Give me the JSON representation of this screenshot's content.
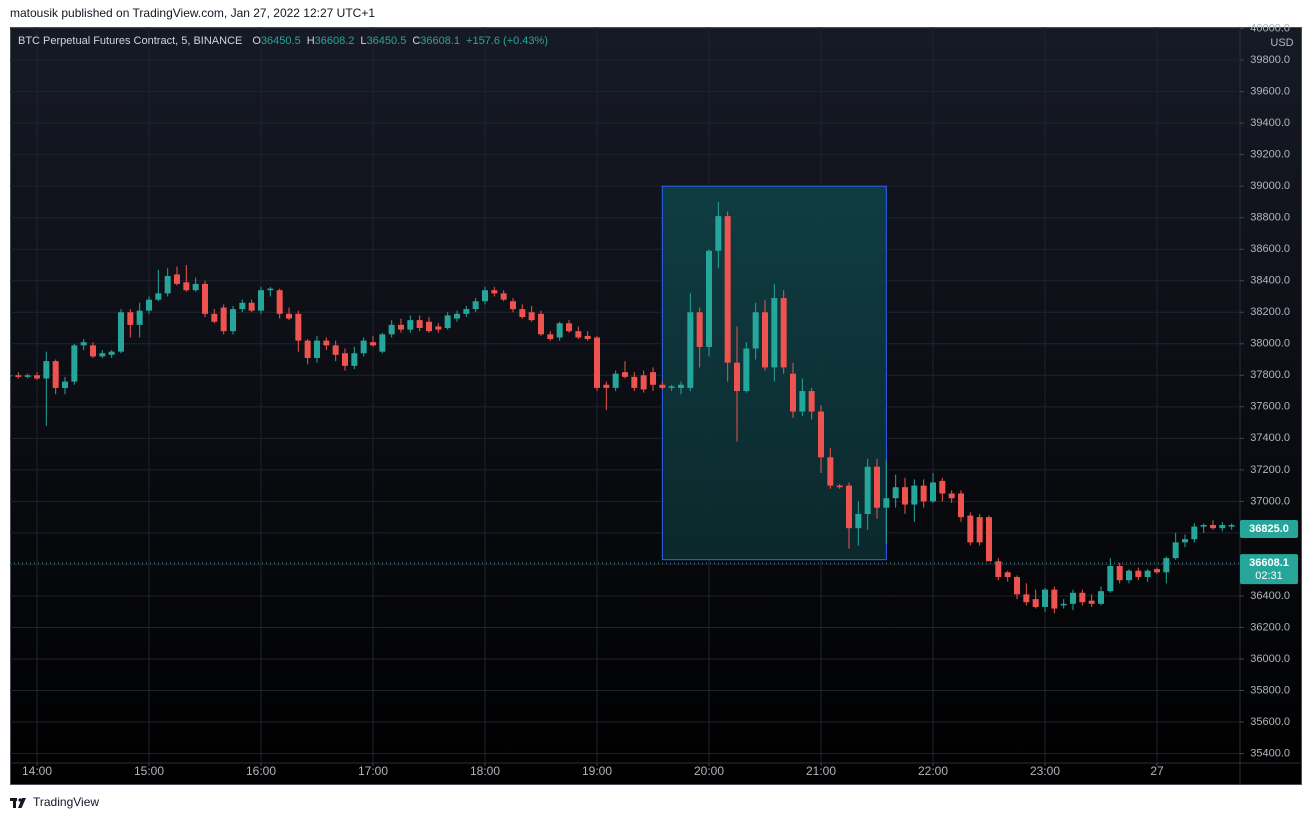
{
  "header": "matousik published on TradingView.com, Jan 27, 2022 12:27 UTC+1",
  "footer": "TradingView",
  "chart_data": {
    "type": "candlestick",
    "legend": {
      "symbol": "BTC Perpetual Futures Contract, 5, BINANCE",
      "o_label": "O",
      "open": 36450.5,
      "h_label": "H",
      "high": 36608.2,
      "l_label": "L",
      "low": 36450.5,
      "c_label": "C",
      "close": 36608.1,
      "change": "+157.6 (+0.43%)"
    },
    "currency": "USD",
    "up_color": "#26a69a",
    "down_color": "#ef5350",
    "grid": true,
    "categories": [
      "13:45",
      "13:50",
      "13:55",
      "14:00",
      "14:05",
      "14:10",
      "14:15",
      "14:20",
      "14:25",
      "14:30",
      "14:35",
      "14:40",
      "14:45",
      "14:50",
      "14:55",
      "15:00",
      "15:05",
      "15:10",
      "15:15",
      "15:20",
      "15:25",
      "15:30",
      "15:35",
      "15:40",
      "15:45",
      "15:50",
      "15:55",
      "16:00",
      "16:05",
      "16:10",
      "16:15",
      "16:20",
      "16:25",
      "16:30",
      "16:35",
      "16:40",
      "16:45",
      "16:50",
      "16:55",
      "17:00",
      "17:05",
      "17:10",
      "17:15",
      "17:20",
      "17:25",
      "17:30",
      "17:35",
      "17:40",
      "17:45",
      "17:50",
      "17:55",
      "18:00",
      "18:05",
      "18:10",
      "18:15",
      "18:20",
      "18:25",
      "18:30",
      "18:35",
      "18:40",
      "18:45",
      "18:50",
      "18:55",
      "19:00",
      "19:05",
      "19:10",
      "19:15",
      "19:20",
      "19:25",
      "19:30",
      "19:35",
      "19:40",
      "19:45",
      "19:50",
      "19:55",
      "20:00",
      "20:05",
      "20:10",
      "20:15",
      "20:20",
      "20:25",
      "20:30",
      "20:35",
      "20:40",
      "20:45",
      "20:50",
      "20:55",
      "21:00",
      "21:05",
      "21:10",
      "21:15",
      "21:20",
      "21:25",
      "21:30",
      "21:35",
      "21:40",
      "21:45",
      "21:50",
      "21:55",
      "22:00",
      "22:05",
      "22:10",
      "22:15",
      "22:20",
      "22:25",
      "22:30",
      "22:35",
      "22:40",
      "22:45",
      "22:50",
      "22:55",
      "23:00",
      "23:05",
      "23:10",
      "23:15",
      "23:20",
      "23:25",
      "23:30",
      "23:35",
      "23:40",
      "23:45",
      "23:50",
      "23:55",
      "00:00",
      "00:05",
      "00:10",
      "00:15",
      "00:20",
      "00:25",
      "00:30",
      "00:35",
      "00:40"
    ],
    "open": [
      37800,
      37800,
      37790,
      37800,
      37780,
      37890,
      37720,
      37760,
      37990,
      37990,
      37920,
      37930,
      37950,
      38200,
      38120,
      38210,
      38280,
      38320,
      38440,
      38390,
      38340,
      38380,
      38190,
      38230,
      38080,
      38220,
      38260,
      38210,
      38340,
      38340,
      38190,
      38190,
      38020,
      37910,
      38020,
      37990,
      37940,
      37860,
      37940,
      38010,
      37950,
      38060,
      38120,
      38090,
      38150,
      38140,
      38110,
      38100,
      38160,
      38190,
      38220,
      38270,
      38340,
      38320,
      38270,
      38220,
      38200,
      38190,
      38060,
      38040,
      38130,
      38080,
      38050,
      38040,
      37740,
      37720,
      37820,
      37790,
      37800,
      37820,
      37740,
      37720,
      37720,
      37720,
      38200,
      37980,
      38590,
      38810,
      37880,
      37700,
      37970,
      38200,
      37850,
      38290,
      37810,
      37570,
      37700,
      37570,
      37280,
      37100,
      37100,
      36830,
      36920,
      37220,
      36960,
      37020,
      37090,
      36980,
      37100,
      37000,
      37130,
      37050,
      37050,
      36910,
      36900,
      36900,
      36620,
      36550,
      36520,
      36410,
      36380,
      36330,
      36440,
      36340,
      36350,
      36420,
      36370,
      36350,
      36430,
      36590,
      36500,
      36560,
      36520,
      36570,
      36550,
      36640,
      36740,
      36760,
      36840,
      36850,
      36830,
      36840
    ],
    "high": [
      37810,
      37820,
      37810,
      37820,
      37950,
      37900,
      37790,
      38000,
      38030,
      38010,
      37960,
      37960,
      38220,
      38220,
      38260,
      38300,
      38470,
      38480,
      38490,
      38500,
      38420,
      38400,
      38220,
      38250,
      38240,
      38280,
      38280,
      38360,
      38360,
      38350,
      38230,
      38210,
      38030,
      38050,
      38040,
      38020,
      37970,
      37980,
      38040,
      38050,
      38070,
      38150,
      38160,
      38180,
      38180,
      38170,
      38130,
      38200,
      38210,
      38240,
      38290,
      38360,
      38360,
      38340,
      38290,
      38250,
      38240,
      38210,
      38080,
      38140,
      38150,
      38110,
      38080,
      38050,
      37760,
      37830,
      37890,
      37820,
      37830,
      37850,
      37760,
      37740,
      37760,
      38320,
      38230,
      38600,
      38900,
      38840,
      38110,
      38010,
      38260,
      38280,
      38380,
      38340,
      37880,
      37780,
      37720,
      37610,
      37340,
      37110,
      37120,
      37000,
      37270,
      37270,
      37260,
      37170,
      37150,
      37140,
      37140,
      37180,
      37150,
      37070,
      37070,
      36930,
      36920,
      36910,
      36640,
      36560,
      36530,
      36480,
      36440,
      36450,
      36460,
      36380,
      36440,
      36440,
      36410,
      36460,
      36640,
      36610,
      36570,
      36580,
      36570,
      36580,
      36650,
      36800,
      36790,
      36860,
      36860,
      36880,
      36870,
      36860
    ],
    "low": [
      37790,
      37780,
      37780,
      37770,
      37480,
      37680,
      37680,
      37740,
      37960,
      37910,
      37910,
      37910,
      37940,
      38040,
      38040,
      38190,
      38270,
      38300,
      38370,
      38330,
      38330,
      38170,
      38130,
      38060,
      38060,
      38200,
      38200,
      38190,
      38300,
      38160,
      38150,
      37950,
      37870,
      37880,
      37960,
      37890,
      37830,
      37840,
      37920,
      37980,
      37940,
      38040,
      38070,
      38070,
      38080,
      38070,
      38070,
      38090,
      38140,
      38170,
      38200,
      38250,
      38300,
      38270,
      38200,
      38160,
      38140,
      38050,
      38020,
      38020,
      38070,
      38030,
      38020,
      37700,
      37580,
      37700,
      37780,
      37700,
      37690,
      37700,
      37710,
      37700,
      37680,
      37700,
      37850,
      37920,
      38480,
      37760,
      37380,
      37690,
      37900,
      37830,
      37760,
      37810,
      37530,
      37540,
      37520,
      37180,
      37080,
      37080,
      36700,
      36720,
      36820,
      36890,
      36730,
      36960,
      36920,
      36870,
      36960,
      36990,
      37000,
      36990,
      36870,
      36720,
      36720,
      36620,
      36500,
      36490,
      36380,
      36340,
      36320,
      36300,
      36290,
      36320,
      36310,
      36340,
      36330,
      36340,
      36420,
      36480,
      36480,
      36500,
      36490,
      36540,
      36480,
      36630,
      36710,
      36740,
      36800,
      36820,
      36810,
      36820
    ],
    "close": [
      37800,
      37790,
      37800,
      37780,
      37890,
      37720,
      37760,
      37990,
      38010,
      37920,
      37940,
      37950,
      38200,
      38120,
      38210,
      38280,
      38320,
      38430,
      38380,
      38340,
      38380,
      38190,
      38140,
      38080,
      38220,
      38260,
      38210,
      38340,
      38350,
      38190,
      38160,
      38020,
      37910,
      38020,
      37990,
      37930,
      37860,
      37940,
      38020,
      37990,
      38060,
      38120,
      38090,
      38150,
      38100,
      38080,
      38090,
      38180,
      38190,
      38220,
      38270,
      38340,
      38320,
      38280,
      38220,
      38170,
      38150,
      38060,
      38030,
      38130,
      38080,
      38040,
      38030,
      37720,
      37720,
      37810,
      37790,
      37720,
      37710,
      37740,
      37720,
      37730,
      37740,
      38200,
      37980,
      38590,
      38810,
      37880,
      37700,
      37970,
      38200,
      37850,
      38290,
      37850,
      37570,
      37700,
      37570,
      37280,
      37100,
      37090,
      36830,
      36920,
      37220,
      36960,
      37020,
      37090,
      36980,
      37100,
      37000,
      37120,
      37050,
      37020,
      36900,
      36740,
      36740,
      36620,
      36520,
      36520,
      36410,
      36360,
      36330,
      36440,
      36320,
      36350,
      36420,
      36360,
      36350,
      36430,
      36590,
      36500,
      36560,
      36520,
      36560,
      36550,
      36640,
      36740,
      36760,
      36840,
      36850,
      36830,
      36850,
      36850
    ],
    "ylim": [
      35340,
      40010
    ],
    "yticks": [
      {
        "value": 35400,
        "label": "35400.0"
      },
      {
        "value": 35600,
        "label": "35600.0"
      },
      {
        "value": 35800,
        "label": "35800.0"
      },
      {
        "value": 36000,
        "label": "36000.0"
      },
      {
        "value": 36200,
        "label": "36200.0"
      },
      {
        "value": 36400,
        "label": "36400.0"
      },
      {
        "value": 36600,
        "label": "36600.0"
      },
      {
        "value": 36800,
        "label": "36800.0"
      },
      {
        "value": 37000,
        "label": "37000.0"
      },
      {
        "value": 37200,
        "label": "37200.0"
      },
      {
        "value": 37400,
        "label": "37400.0"
      },
      {
        "value": 37600,
        "label": "37600.0"
      },
      {
        "value": 37800,
        "label": "37800.0"
      },
      {
        "value": 38000,
        "label": "38000.0"
      },
      {
        "value": 38200,
        "label": "38200.0"
      },
      {
        "value": 38400,
        "label": "38400.0"
      },
      {
        "value": 38600,
        "label": "38600.0"
      },
      {
        "value": 38800,
        "label": "38800.0"
      },
      {
        "value": 39000,
        "label": "39000.0"
      },
      {
        "value": 39200,
        "label": "39200.0"
      },
      {
        "value": 39400,
        "label": "39400.0"
      },
      {
        "value": 39600,
        "label": "39600.0"
      },
      {
        "value": 39800,
        "label": "39800.0"
      },
      {
        "value": 40000,
        "label": "40000.0"
      }
    ],
    "xticks": [
      "14:00",
      "15:00",
      "16:00",
      "17:00",
      "18:00",
      "19:00",
      "20:00",
      "21:00",
      "22:00",
      "23:00",
      {
        "value": "00:00",
        "label": "27"
      }
    ],
    "highlight": {
      "start": "19:35",
      "end": "21:35",
      "top": 39000,
      "bottom": 36630
    },
    "price_labels": [
      {
        "value": 36825,
        "label": "36825.0",
        "color": "#26a69a"
      },
      {
        "value": 36608.1,
        "label": "36608.1",
        "countdown": "02:31",
        "color": "#26a69a",
        "dotted_line": true
      }
    ]
  }
}
